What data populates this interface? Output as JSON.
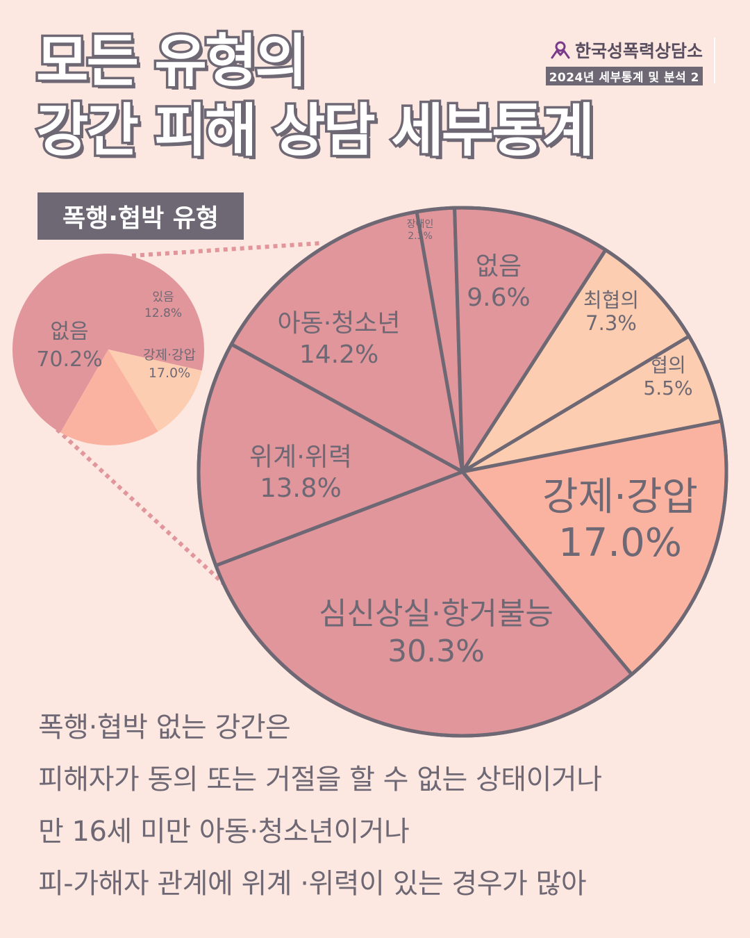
{
  "title": {
    "line1": "모든 유형의",
    "line2": "강간 피해 상담 세부통계"
  },
  "org": {
    "name": "한국성폭력상담소",
    "subtitle": "2024년 세부통계 및 분석 2",
    "logo_icon": "person-logo-icon"
  },
  "subtitle_box": "폭행·협박 유형",
  "colors": {
    "background": "#fce7e1",
    "slice_pink": "#e0969b",
    "slice_peach": "#fccdb0",
    "slice_salmon": "#fbb3a1",
    "outline": "#6e6874",
    "connector": "#e0969b"
  },
  "chart_data": [
    {
      "type": "pie",
      "categories": [
        "없음",
        "있음",
        "강제·강압"
      ],
      "values": [
        70.2,
        12.8,
        17.0
      ],
      "labels": [
        "70.2%",
        "12.8%",
        "17.0%"
      ]
    },
    {
      "type": "pie",
      "categories": [
        "장애인",
        "없음",
        "최협의",
        "협의",
        "강제·강압",
        "심신상실·항거불능",
        "위계·위력",
        "아동·청소년"
      ],
      "values": [
        2.3,
        9.6,
        7.3,
        5.5,
        17.0,
        30.3,
        13.8,
        14.2
      ],
      "labels": [
        "2.3%",
        "9.6%",
        "7.3%",
        "5.5%",
        "17.0%",
        "30.3%",
        "13.8%",
        "14.2%"
      ]
    }
  ],
  "description": [
    "폭행·협박 없는 강간은",
    "피해자가 동의 또는 거절을 할 수 없는 상태이거나",
    "만 16세 미만 아동·청소년이거나",
    "피-가해자 관계에 위계 ·위력이 있는 경우가 많아"
  ]
}
